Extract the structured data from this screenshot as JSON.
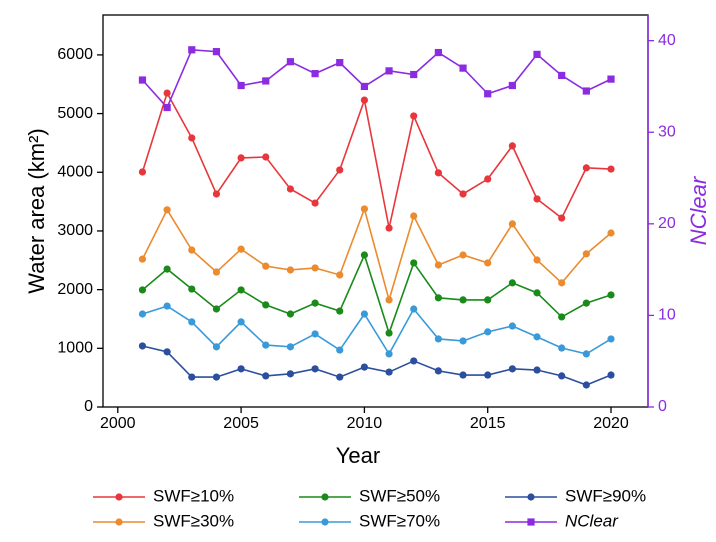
{
  "chart_data": {
    "type": "line",
    "x": [
      2001,
      2002,
      2003,
      2004,
      2005,
      2006,
      2007,
      2008,
      2009,
      2010,
      2011,
      2012,
      2013,
      2014,
      2015,
      2016,
      2017,
      2018,
      2019,
      2020
    ],
    "xlabel": "Year",
    "ylabel": "Water area (km²)",
    "y2label": "NClear",
    "xlim": [
      1999.4,
      2021.5
    ],
    "xticks": [
      2000,
      2005,
      2010,
      2015,
      2020
    ],
    "ylim": [
      0,
      6680
    ],
    "yticks": [
      0,
      1000,
      2000,
      3000,
      4000,
      5000,
      6000
    ],
    "y2lim": [
      0,
      42.8
    ],
    "y2ticks": [
      0,
      10,
      20,
      30,
      40
    ],
    "y2color": "#8b2be2",
    "series": [
      {
        "name": "SWF≥10%",
        "color": "#e8373c",
        "marker": "circle",
        "values": [
          4005,
          5350,
          4585,
          3630,
          4245,
          4260,
          3715,
          3475,
          4040,
          5230,
          3050,
          4960,
          3990,
          3630,
          3885,
          4450,
          3545,
          3220,
          4075,
          4055
        ]
      },
      {
        "name": "SWF≥30%",
        "color": "#ec8a2e",
        "marker": "circle",
        "values": [
          2520,
          3360,
          2675,
          2300,
          2690,
          2400,
          2335,
          2370,
          2250,
          3375,
          1825,
          3255,
          2420,
          2590,
          2455,
          3120,
          2505,
          2115,
          2610,
          2965
        ]
      },
      {
        "name": "SWF≥50%",
        "color": "#1a8a1a",
        "marker": "circle",
        "values": [
          1995,
          2350,
          2010,
          1670,
          1995,
          1740,
          1585,
          1770,
          1635,
          2590,
          1260,
          2455,
          1860,
          1825,
          1825,
          2115,
          1945,
          1535,
          1770,
          1910
        ]
      },
      {
        "name": "SWF≥70%",
        "color": "#3a9ad9",
        "marker": "circle",
        "values": [
          1585,
          1720,
          1450,
          1025,
          1450,
          1055,
          1025,
          1245,
          970,
          1585,
          905,
          1670,
          1160,
          1125,
          1280,
          1380,
          1195,
          1005,
          905,
          1160
        ]
      },
      {
        "name": "SWF≥90%",
        "color": "#2b4f9e",
        "marker": "circle",
        "values": [
          1040,
          940,
          510,
          510,
          650,
          530,
          565,
          650,
          510,
          680,
          595,
          785,
          615,
          545,
          545,
          650,
          630,
          530,
          375,
          545
        ]
      },
      {
        "name": "NClear",
        "color": "#8b2be2",
        "marker": "square",
        "axis": "y2",
        "values": [
          35.7,
          32.7,
          39.0,
          38.8,
          35.1,
          35.6,
          37.7,
          36.4,
          37.6,
          35.0,
          36.7,
          36.3,
          38.7,
          37.0,
          34.2,
          35.1,
          38.5,
          36.2,
          34.5,
          35.8
        ]
      }
    ]
  }
}
